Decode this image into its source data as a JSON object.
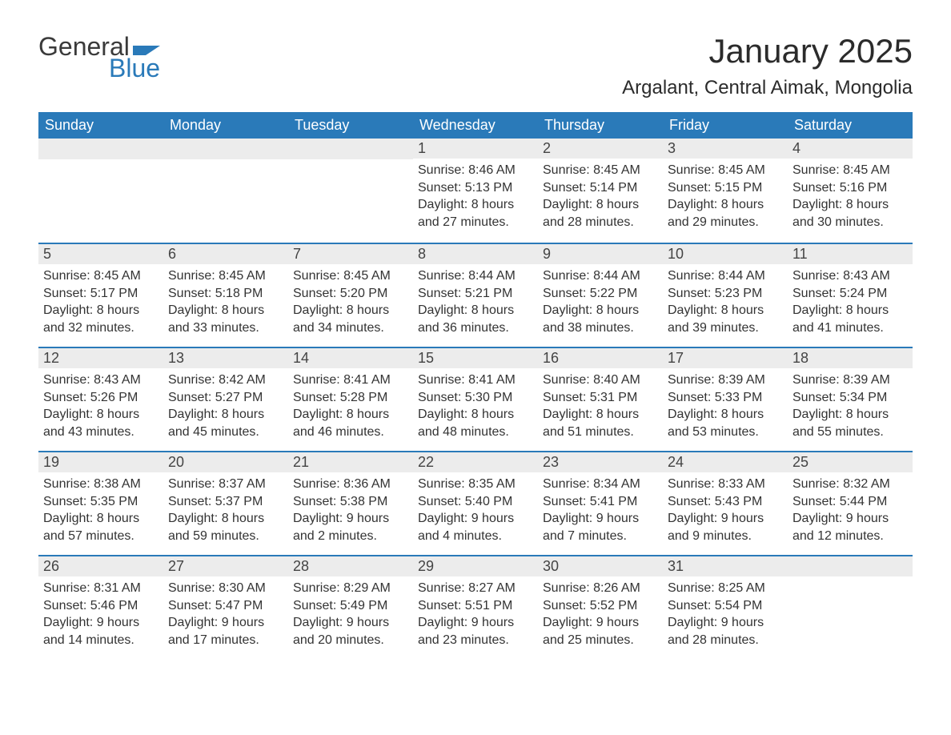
{
  "logo": {
    "word1": "General",
    "word2": "Blue"
  },
  "title": "January 2025",
  "location": "Argalant, Central Aimak, Mongolia",
  "colors": {
    "header_bg": "#2a7ab9",
    "header_text": "#ffffff",
    "daynum_bg": "#ececec",
    "border_top": "#2a7ab9",
    "body_text": "#333333",
    "logo_gray": "#3a3a3a",
    "logo_blue": "#2a7ab9"
  },
  "day_headers": [
    "Sunday",
    "Monday",
    "Tuesday",
    "Wednesday",
    "Thursday",
    "Friday",
    "Saturday"
  ],
  "weeks": [
    [
      null,
      null,
      null,
      {
        "n": "1",
        "sr": "Sunrise: 8:46 AM",
        "ss": "Sunset: 5:13 PM",
        "d1": "Daylight: 8 hours",
        "d2": "and 27 minutes."
      },
      {
        "n": "2",
        "sr": "Sunrise: 8:45 AM",
        "ss": "Sunset: 5:14 PM",
        "d1": "Daylight: 8 hours",
        "d2": "and 28 minutes."
      },
      {
        "n": "3",
        "sr": "Sunrise: 8:45 AM",
        "ss": "Sunset: 5:15 PM",
        "d1": "Daylight: 8 hours",
        "d2": "and 29 minutes."
      },
      {
        "n": "4",
        "sr": "Sunrise: 8:45 AM",
        "ss": "Sunset: 5:16 PM",
        "d1": "Daylight: 8 hours",
        "d2": "and 30 minutes."
      }
    ],
    [
      {
        "n": "5",
        "sr": "Sunrise: 8:45 AM",
        "ss": "Sunset: 5:17 PM",
        "d1": "Daylight: 8 hours",
        "d2": "and 32 minutes."
      },
      {
        "n": "6",
        "sr": "Sunrise: 8:45 AM",
        "ss": "Sunset: 5:18 PM",
        "d1": "Daylight: 8 hours",
        "d2": "and 33 minutes."
      },
      {
        "n": "7",
        "sr": "Sunrise: 8:45 AM",
        "ss": "Sunset: 5:20 PM",
        "d1": "Daylight: 8 hours",
        "d2": "and 34 minutes."
      },
      {
        "n": "8",
        "sr": "Sunrise: 8:44 AM",
        "ss": "Sunset: 5:21 PM",
        "d1": "Daylight: 8 hours",
        "d2": "and 36 minutes."
      },
      {
        "n": "9",
        "sr": "Sunrise: 8:44 AM",
        "ss": "Sunset: 5:22 PM",
        "d1": "Daylight: 8 hours",
        "d2": "and 38 minutes."
      },
      {
        "n": "10",
        "sr": "Sunrise: 8:44 AM",
        "ss": "Sunset: 5:23 PM",
        "d1": "Daylight: 8 hours",
        "d2": "and 39 minutes."
      },
      {
        "n": "11",
        "sr": "Sunrise: 8:43 AM",
        "ss": "Sunset: 5:24 PM",
        "d1": "Daylight: 8 hours",
        "d2": "and 41 minutes."
      }
    ],
    [
      {
        "n": "12",
        "sr": "Sunrise: 8:43 AM",
        "ss": "Sunset: 5:26 PM",
        "d1": "Daylight: 8 hours",
        "d2": "and 43 minutes."
      },
      {
        "n": "13",
        "sr": "Sunrise: 8:42 AM",
        "ss": "Sunset: 5:27 PM",
        "d1": "Daylight: 8 hours",
        "d2": "and 45 minutes."
      },
      {
        "n": "14",
        "sr": "Sunrise: 8:41 AM",
        "ss": "Sunset: 5:28 PM",
        "d1": "Daylight: 8 hours",
        "d2": "and 46 minutes."
      },
      {
        "n": "15",
        "sr": "Sunrise: 8:41 AM",
        "ss": "Sunset: 5:30 PM",
        "d1": "Daylight: 8 hours",
        "d2": "and 48 minutes."
      },
      {
        "n": "16",
        "sr": "Sunrise: 8:40 AM",
        "ss": "Sunset: 5:31 PM",
        "d1": "Daylight: 8 hours",
        "d2": "and 51 minutes."
      },
      {
        "n": "17",
        "sr": "Sunrise: 8:39 AM",
        "ss": "Sunset: 5:33 PM",
        "d1": "Daylight: 8 hours",
        "d2": "and 53 minutes."
      },
      {
        "n": "18",
        "sr": "Sunrise: 8:39 AM",
        "ss": "Sunset: 5:34 PM",
        "d1": "Daylight: 8 hours",
        "d2": "and 55 minutes."
      }
    ],
    [
      {
        "n": "19",
        "sr": "Sunrise: 8:38 AM",
        "ss": "Sunset: 5:35 PM",
        "d1": "Daylight: 8 hours",
        "d2": "and 57 minutes."
      },
      {
        "n": "20",
        "sr": "Sunrise: 8:37 AM",
        "ss": "Sunset: 5:37 PM",
        "d1": "Daylight: 8 hours",
        "d2": "and 59 minutes."
      },
      {
        "n": "21",
        "sr": "Sunrise: 8:36 AM",
        "ss": "Sunset: 5:38 PM",
        "d1": "Daylight: 9 hours",
        "d2": "and 2 minutes."
      },
      {
        "n": "22",
        "sr": "Sunrise: 8:35 AM",
        "ss": "Sunset: 5:40 PM",
        "d1": "Daylight: 9 hours",
        "d2": "and 4 minutes."
      },
      {
        "n": "23",
        "sr": "Sunrise: 8:34 AM",
        "ss": "Sunset: 5:41 PM",
        "d1": "Daylight: 9 hours",
        "d2": "and 7 minutes."
      },
      {
        "n": "24",
        "sr": "Sunrise: 8:33 AM",
        "ss": "Sunset: 5:43 PM",
        "d1": "Daylight: 9 hours",
        "d2": "and 9 minutes."
      },
      {
        "n": "25",
        "sr": "Sunrise: 8:32 AM",
        "ss": "Sunset: 5:44 PM",
        "d1": "Daylight: 9 hours",
        "d2": "and 12 minutes."
      }
    ],
    [
      {
        "n": "26",
        "sr": "Sunrise: 8:31 AM",
        "ss": "Sunset: 5:46 PM",
        "d1": "Daylight: 9 hours",
        "d2": "and 14 minutes."
      },
      {
        "n": "27",
        "sr": "Sunrise: 8:30 AM",
        "ss": "Sunset: 5:47 PM",
        "d1": "Daylight: 9 hours",
        "d2": "and 17 minutes."
      },
      {
        "n": "28",
        "sr": "Sunrise: 8:29 AM",
        "ss": "Sunset: 5:49 PM",
        "d1": "Daylight: 9 hours",
        "d2": "and 20 minutes."
      },
      {
        "n": "29",
        "sr": "Sunrise: 8:27 AM",
        "ss": "Sunset: 5:51 PM",
        "d1": "Daylight: 9 hours",
        "d2": "and 23 minutes."
      },
      {
        "n": "30",
        "sr": "Sunrise: 8:26 AM",
        "ss": "Sunset: 5:52 PM",
        "d1": "Daylight: 9 hours",
        "d2": "and 25 minutes."
      },
      {
        "n": "31",
        "sr": "Sunrise: 8:25 AM",
        "ss": "Sunset: 5:54 PM",
        "d1": "Daylight: 9 hours",
        "d2": "and 28 minutes."
      },
      null
    ]
  ]
}
